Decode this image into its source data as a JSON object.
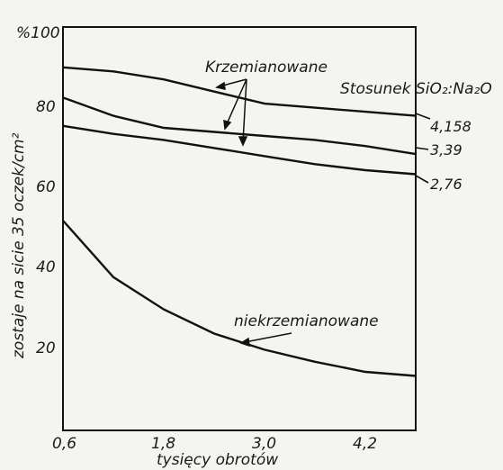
{
  "chart_data": {
    "type": "line",
    "title": "",
    "xlabel": "tysięcy obrotów",
    "ylabel": "zostaje na sicie 35 oczek/cm²",
    "x_ticks": [
      "0,6",
      "1,8",
      "3,0",
      "4,2"
    ],
    "y_ticks": [
      "20",
      "40",
      "60",
      "80",
      "%100"
    ],
    "xlim": [
      0.6,
      4.8
    ],
    "ylim": [
      0,
      100
    ],
    "grid": false,
    "legend_title": "Stosunek SiO₂:Na₂O",
    "group_labels": {
      "silicated": "Krzemianowane",
      "non_silicated": "niekrzemianowane"
    },
    "series": [
      {
        "name": "4,158",
        "x": [
          0.6,
          1.2,
          1.8,
          2.4,
          3.0,
          3.6,
          4.2,
          4.8
        ],
        "values": [
          90,
          89,
          87,
          84,
          81,
          80,
          79,
          78
        ]
      },
      {
        "name": "3,39",
        "x": [
          0.6,
          1.2,
          1.8,
          2.4,
          3.0,
          3.6,
          4.2,
          4.8
        ],
        "values": [
          82.5,
          78,
          75,
          74,
          73,
          72,
          70.5,
          68.5
        ]
      },
      {
        "name": "2,76",
        "x": [
          0.6,
          1.2,
          1.8,
          2.4,
          3.0,
          3.6,
          4.2,
          4.8
        ],
        "values": [
          75.5,
          73.5,
          72,
          70,
          68,
          66,
          64.5,
          63.5
        ]
      },
      {
        "name": "",
        "x": [
          0.6,
          1.2,
          1.8,
          2.4,
          3.0,
          3.6,
          4.2,
          4.8
        ],
        "values": [
          52,
          38,
          30,
          24,
          20,
          17,
          14.5,
          13.5
        ]
      }
    ]
  }
}
